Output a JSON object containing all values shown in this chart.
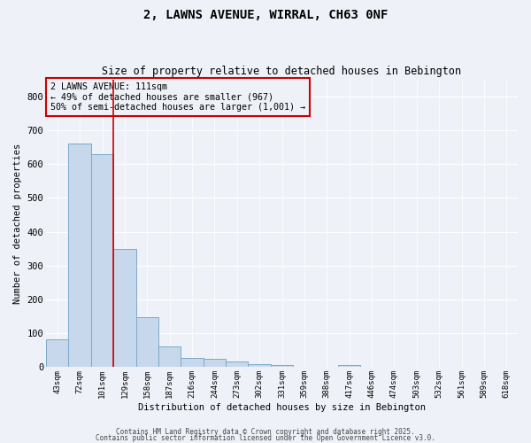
{
  "title1": "2, LAWNS AVENUE, WIRRAL, CH63 0NF",
  "title2": "Size of property relative to detached houses in Bebington",
  "xlabel": "Distribution of detached houses by size in Bebington",
  "ylabel": "Number of detached properties",
  "categories": [
    "43sqm",
    "72sqm",
    "101sqm",
    "129sqm",
    "158sqm",
    "187sqm",
    "216sqm",
    "244sqm",
    "273sqm",
    "302sqm",
    "331sqm",
    "359sqm",
    "388sqm",
    "417sqm",
    "446sqm",
    "474sqm",
    "503sqm",
    "532sqm",
    "561sqm",
    "589sqm",
    "618sqm"
  ],
  "bar_heights": [
    83,
    660,
    630,
    350,
    148,
    60,
    27,
    25,
    17,
    10,
    7,
    0,
    0,
    7,
    0,
    0,
    0,
    0,
    0,
    0,
    0
  ],
  "bar_color": "#c8d8ec",
  "bar_edge_color": "#7aaac8",
  "bar_width": 1.0,
  "ylim": [
    0,
    850
  ],
  "yticks": [
    0,
    100,
    200,
    300,
    400,
    500,
    600,
    700,
    800
  ],
  "red_line_x": 2.5,
  "annotation_text": "2 LAWNS AVENUE: 111sqm\n← 49% of detached houses are smaller (967)\n50% of semi-detached houses are larger (1,001) →",
  "annotation_box_color": "#cc0000",
  "background_color": "#eef2f8",
  "grid_color": "#ffffff",
  "footer1": "Contains HM Land Registry data © Crown copyright and database right 2025.",
  "footer2": "Contains public sector information licensed under the Open Government Licence v3.0."
}
